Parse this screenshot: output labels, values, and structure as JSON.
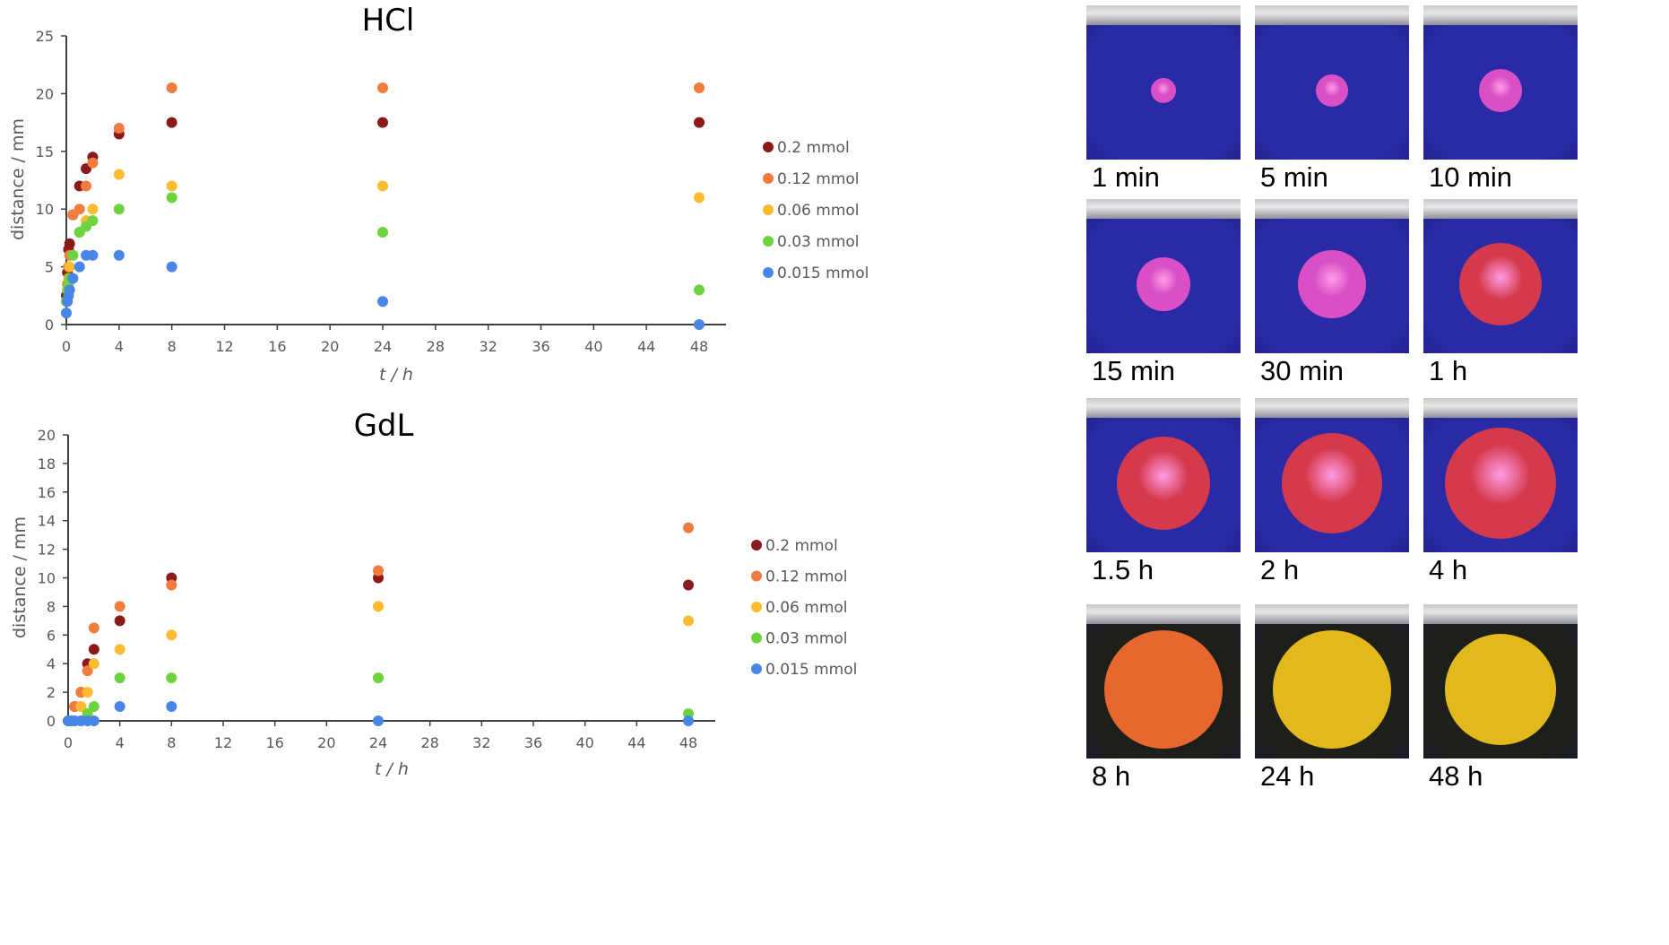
{
  "chart_data": [
    {
      "type": "scatter",
      "title": "HCl",
      "xlabel": "t / h",
      "ylabel": "distance / mm",
      "xlim": [
        0,
        48
      ],
      "ylim": [
        0,
        25
      ],
      "xticks": [
        "0",
        "4",
        "8",
        "12",
        "16",
        "20",
        "24",
        "28",
        "32",
        "36",
        "40",
        "44",
        "48"
      ],
      "yticks": [
        "0",
        "5",
        "10",
        "15",
        "20",
        "25"
      ],
      "legend_position": "right",
      "grid": false,
      "series": [
        {
          "name": "0.2 mmol",
          "color": "#8b1a1a",
          "x": [
            0,
            0.083,
            0.17,
            0.25,
            0.5,
            1,
            1.5,
            2,
            4,
            8,
            24,
            48
          ],
          "y": [
            2.5,
            4.5,
            6.5,
            7,
            9.5,
            12,
            13.5,
            14.5,
            16.5,
            17.5,
            17.5,
            17.5
          ]
        },
        {
          "name": "0.12 mmol",
          "color": "#f07c3e",
          "x": [
            0,
            0.083,
            0.17,
            0.25,
            0.5,
            1,
            1.5,
            2,
            4,
            8,
            24,
            48
          ],
          "y": [
            2,
            3.5,
            5,
            6,
            9.5,
            10,
            12,
            14,
            17,
            20.5,
            20.5,
            20.5
          ]
        },
        {
          "name": "0.06 mmol",
          "color": "#fdbb2f",
          "x": [
            0,
            0.083,
            0.17,
            0.25,
            0.5,
            1,
            1.5,
            2,
            4,
            8,
            24,
            48
          ],
          "y": [
            2,
            3,
            4,
            5,
            6,
            8,
            9,
            10,
            13,
            12,
            12,
            11
          ]
        },
        {
          "name": "0.03 mmol",
          "color": "#6dd33f",
          "x": [
            0,
            0.083,
            0.17,
            0.25,
            0.5,
            1,
            1.5,
            2,
            4,
            8,
            24,
            48
          ],
          "y": [
            2,
            3,
            3.5,
            4,
            6,
            8,
            8.5,
            9,
            10,
            11,
            8,
            3
          ]
        },
        {
          "name": "0.015 mmol",
          "color": "#4a86e8",
          "x": [
            0,
            0.083,
            0.17,
            0.25,
            0.5,
            1,
            1.5,
            2,
            4,
            8,
            24,
            48
          ],
          "y": [
            1,
            2,
            2.5,
            3,
            4,
            5,
            6,
            6,
            6,
            5,
            2,
            0
          ]
        }
      ]
    },
    {
      "type": "scatter",
      "title": "GdL",
      "xlabel": "t / h",
      "ylabel": "distance / mm",
      "xlim": [
        0,
        48
      ],
      "ylim": [
        0,
        20
      ],
      "xticks": [
        "0",
        "4",
        "8",
        "12",
        "16",
        "20",
        "24",
        "28",
        "32",
        "36",
        "40",
        "44",
        "48"
      ],
      "yticks": [
        "0",
        "2",
        "4",
        "6",
        "8",
        "10",
        "12",
        "14",
        "16",
        "18",
        "20"
      ],
      "legend_position": "right",
      "grid": false,
      "series": [
        {
          "name": "0.2 mmol",
          "color": "#8b1a1a",
          "x": [
            0,
            0.25,
            0.5,
            1,
            1.5,
            2,
            4,
            8,
            24,
            48
          ],
          "y": [
            0,
            0,
            1,
            2,
            4,
            5,
            7,
            10,
            10,
            9.5
          ]
        },
        {
          "name": "0.12 mmol",
          "color": "#f07c3e",
          "x": [
            0,
            0.25,
            0.5,
            1,
            1.5,
            2,
            4,
            8,
            24,
            48
          ],
          "y": [
            0,
            0,
            1,
            2,
            3.5,
            6.5,
            8,
            9.5,
            10.5,
            13.5
          ]
        },
        {
          "name": "0.06 mmol",
          "color": "#fdbb2f",
          "x": [
            0,
            0.25,
            0.5,
            1,
            1.5,
            2,
            4,
            8,
            24,
            48
          ],
          "y": [
            0,
            0,
            0,
            1,
            2,
            4,
            5,
            6,
            8,
            7
          ]
        },
        {
          "name": "0.03 mmol",
          "color": "#6dd33f",
          "x": [
            0,
            0.25,
            0.5,
            1,
            1.5,
            2,
            4,
            8,
            24,
            48
          ],
          "y": [
            0,
            0,
            0,
            0,
            0.5,
            1,
            3,
            3,
            3,
            0.5
          ]
        },
        {
          "name": "0.015 mmol",
          "color": "#4a86e8",
          "x": [
            0,
            0.25,
            0.5,
            1,
            1.5,
            2,
            4,
            8,
            24,
            48
          ],
          "y": [
            0,
            0,
            0,
            0,
            0,
            0,
            1,
            1,
            0,
            0
          ]
        }
      ]
    }
  ],
  "photos": {
    "labels": [
      "1 min",
      "5 min",
      "10 min",
      "15 min",
      "30 min",
      "1 h",
      "1.5 h",
      "2 h",
      "4 h",
      "8 h",
      "24 h",
      "48 h"
    ],
    "colors": {
      "vial_blue": "#2a2aa6",
      "vial_dark": "#1d1f1a",
      "spot_magenta": "#d84fc6",
      "spot_red": "#d53a4c",
      "spot_orange": "#e8672e",
      "spot_yellow": "#e3b81a"
    }
  }
}
